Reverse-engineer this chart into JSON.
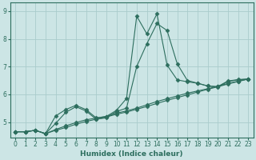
{
  "xlabel": "Humidex (Indice chaleur)",
  "bg_color": "#cce5e5",
  "grid_color": "#aacccc",
  "line_color": "#2d6e5e",
  "xlim": [
    -0.5,
    23.5
  ],
  "ylim": [
    4.45,
    9.3
  ],
  "xticks": [
    0,
    1,
    2,
    3,
    4,
    5,
    6,
    7,
    8,
    9,
    10,
    11,
    12,
    13,
    14,
    15,
    16,
    17,
    18,
    19,
    20,
    21,
    22,
    23
  ],
  "yticks": [
    5,
    6,
    7,
    8,
    9
  ],
  "series": [
    {
      "x": [
        0,
        1,
        2,
        3,
        4,
        5,
        6,
        7,
        8,
        9,
        10,
        11,
        12,
        13,
        14,
        15,
        16,
        17,
        18,
        19,
        20,
        21,
        22,
        23
      ],
      "y": [
        4.65,
        4.65,
        4.7,
        4.58,
        5.22,
        5.45,
        5.6,
        5.45,
        5.15,
        5.2,
        5.42,
        5.85,
        8.82,
        8.18,
        8.9,
        7.05,
        6.52,
        6.45,
        6.4,
        6.3,
        6.28,
        6.48,
        6.53,
        6.55
      ]
    },
    {
      "x": [
        0,
        1,
        2,
        3,
        4,
        5,
        6,
        7,
        8,
        9,
        10,
        11,
        12,
        13,
        14,
        15,
        16,
        17,
        18,
        19,
        20,
        21,
        22,
        23
      ],
      "y": [
        4.65,
        4.65,
        4.7,
        4.58,
        4.95,
        5.35,
        5.55,
        5.4,
        5.1,
        5.15,
        5.38,
        5.5,
        7.0,
        7.82,
        8.55,
        8.3,
        7.1,
        6.5,
        6.4,
        6.3,
        6.26,
        6.46,
        6.52,
        6.55
      ]
    },
    {
      "x": [
        0,
        1,
        2,
        3,
        4,
        5,
        6,
        7,
        8,
        9,
        10,
        11,
        12,
        13,
        14,
        15,
        16,
        17,
        18,
        19,
        20,
        21,
        22,
        23
      ],
      "y": [
        4.65,
        4.65,
        4.7,
        4.58,
        4.7,
        4.8,
        4.92,
        5.02,
        5.1,
        5.18,
        5.28,
        5.36,
        5.46,
        5.56,
        5.67,
        5.78,
        5.88,
        5.98,
        6.08,
        6.18,
        6.27,
        6.37,
        6.46,
        6.55
      ]
    },
    {
      "x": [
        0,
        1,
        2,
        3,
        4,
        5,
        6,
        7,
        8,
        9,
        10,
        11,
        12,
        13,
        14,
        15,
        16,
        17,
        18,
        19,
        20,
        21,
        22,
        23
      ],
      "y": [
        4.65,
        4.65,
        4.7,
        4.58,
        4.73,
        4.86,
        4.98,
        5.08,
        5.14,
        5.2,
        5.32,
        5.4,
        5.5,
        5.62,
        5.74,
        5.84,
        5.94,
        6.04,
        6.12,
        6.2,
        6.29,
        6.39,
        6.47,
        6.55
      ]
    }
  ],
  "marker": "D",
  "markersize": 2.5,
  "linewidth": 0.8,
  "label_fontsize": 6.5,
  "tick_fontsize": 5.5
}
